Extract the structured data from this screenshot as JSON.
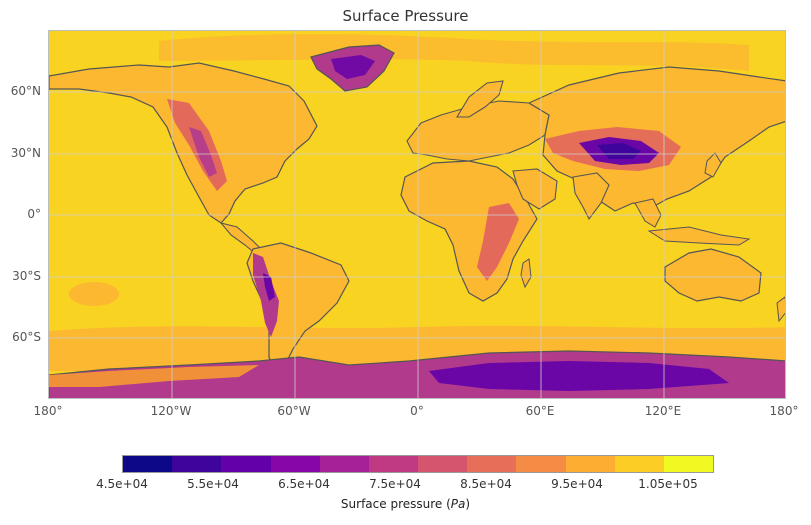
{
  "title": "Surface Pressure",
  "lat_ticks": [
    "60°N",
    "30°N",
    "0°",
    "30°S",
    "60°S"
  ],
  "lon_ticks": [
    "180°",
    "120°W",
    "60°W",
    "0°",
    "60°E",
    "120°E",
    "180°"
  ],
  "colorbar": {
    "colors": [
      "#0d0887",
      "#3e049c",
      "#6300a7",
      "#8606a6",
      "#a62098",
      "#c03a83",
      "#d5546e",
      "#e76f5a",
      "#f58c46",
      "#fdad32",
      "#fcce25",
      "#f0f921"
    ],
    "tick_labels": [
      "4.5e+04",
      "5.5e+04",
      "6.5e+04",
      "7.5e+04",
      "8.5e+04",
      "9.5e+04",
      "1.05e+05"
    ],
    "label_text": "Surface pressure (",
    "label_unit": "Pa",
    "label_close": ")"
  },
  "legend_colors": {
    "ocean": "#f9d322",
    "lowland": "#fbb830",
    "upland": "#f0913a",
    "highland": "#e0605f",
    "mountain": "#b13a8d",
    "plateau": "#6a06a6",
    "coast": "#555555",
    "grid": "#cfcfcf"
  }
}
